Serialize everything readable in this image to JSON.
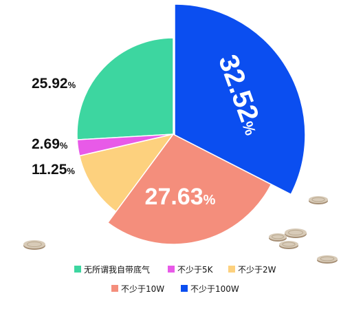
{
  "chart_data": {
    "type": "pie",
    "categories": [
      "无所谓我自带底气",
      "不少于5K",
      "不少于2W",
      "不少于10W",
      "不少于100W"
    ],
    "values": [
      25.92,
      2.69,
      11.25,
      27.63,
      32.52
    ],
    "labels": [
      "25.92",
      "2.69",
      "11.25",
      "27.63",
      "32.52"
    ],
    "unit": "%",
    "colors": [
      "#3dd6a0",
      "#e85ae8",
      "#fdd17e",
      "#f48e7c",
      "#0b4ef0"
    ],
    "exploded": [
      "不少于100W"
    ],
    "legend": {
      "position": "bottom"
    }
  },
  "decorations": {
    "coin_icon": "coin-icon"
  }
}
